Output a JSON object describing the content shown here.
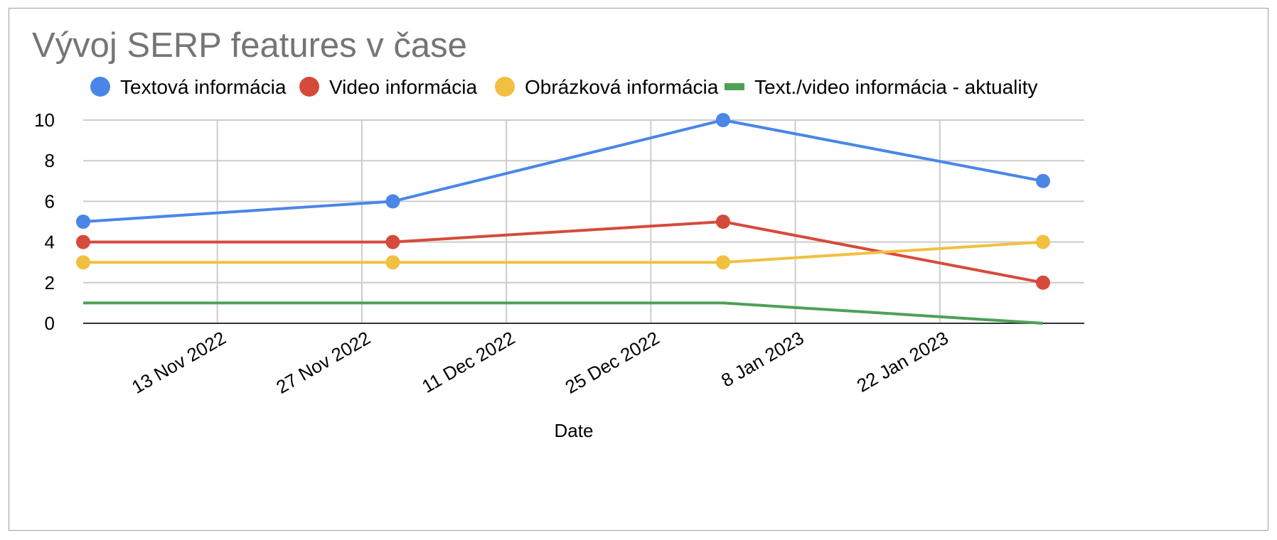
{
  "chart_data": {
    "type": "line",
    "title": "Vývoj SERP features v čase",
    "xlabel": "Date",
    "ylabel": "",
    "x_axis_type": "date",
    "xlim": [
      "2022-10-31",
      "2023-02-05"
    ],
    "ylim": [
      0,
      10
    ],
    "y_ticks": [
      0,
      2,
      4,
      6,
      8,
      10
    ],
    "x_ticks": [
      {
        "date": "2022-11-13",
        "label": "13 Nov 2022"
      },
      {
        "date": "2022-11-27",
        "label": "27 Nov 2022"
      },
      {
        "date": "2022-12-11",
        "label": "11 Dec 2022"
      },
      {
        "date": "2022-12-25",
        "label": "25 Dec 2022"
      },
      {
        "date": "2023-01-08",
        "label": "8 Jan 2023"
      },
      {
        "date": "2023-01-22",
        "label": "22 Jan 2023"
      }
    ],
    "grid": true,
    "legend_position": "top",
    "x": [
      "2022-10-31",
      "2022-11-30",
      "2023-01-01",
      "2023-02-01"
    ],
    "series": [
      {
        "name": "Textová informácia",
        "color": "#4a86e8",
        "marker": "circle",
        "show_points": true,
        "values": [
          5,
          6,
          10,
          7
        ]
      },
      {
        "name": "Video informácia",
        "color": "#d64a3b",
        "marker": "circle",
        "show_points": true,
        "values": [
          4,
          4,
          5,
          2
        ]
      },
      {
        "name": "Obrázková informácia",
        "color": "#f1c040",
        "marker": "circle",
        "show_points": true,
        "values": [
          3,
          3,
          3,
          4
        ]
      },
      {
        "name": "Text./video informácia - aktuality",
        "color": "#4ea057",
        "marker": "line",
        "show_points": false,
        "values": [
          1,
          1,
          1,
          0
        ]
      }
    ]
  }
}
